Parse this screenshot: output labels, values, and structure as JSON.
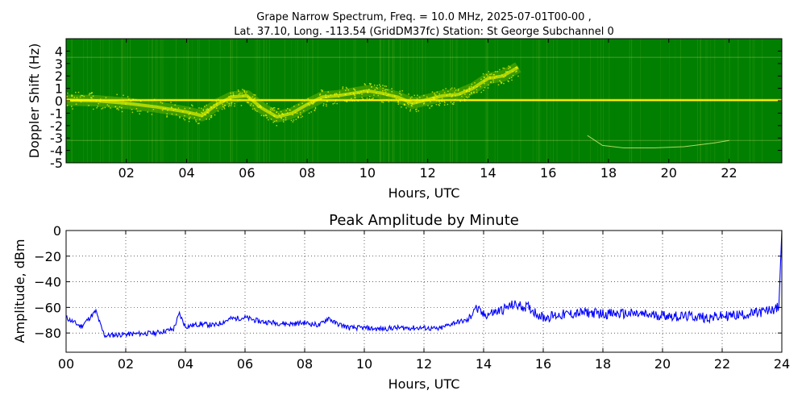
{
  "header": {
    "title_line1": "Grape Narrow Spectrum, Freq. = 10.0 MHz, 2025-07-01T00-00 ,",
    "title_line2": "Lat.  37.10, Long. -113.54 (GridDM37fc) Station: St George Subchannel 0"
  },
  "chart_data": [
    {
      "type": "heatmap",
      "title": "",
      "xlabel": "Hours, UTC",
      "ylabel": "Doppler Shift (Hz)",
      "xlim": [
        0,
        23.75
      ],
      "ylim": [
        -5,
        5
      ],
      "xticks": [
        "02",
        "04",
        "06",
        "08",
        "10",
        "12",
        "14",
        "16",
        "18",
        "20",
        "22"
      ],
      "xtick_values": [
        2,
        4,
        6,
        8,
        10,
        12,
        14,
        16,
        18,
        20,
        22
      ],
      "yticks": [
        "4",
        "3",
        "2",
        "1",
        "0",
        "-1",
        "-2",
        "-3",
        "-4",
        "-5"
      ],
      "ytick_values": [
        4,
        3,
        2,
        1,
        0,
        -1,
        -2,
        -3,
        -4,
        -5
      ],
      "background_color": "#007f00",
      "signal_color": "#ffff00",
      "carrier_hz": 0.05,
      "doppler_trace": {
        "hours": [
          0,
          1,
          2,
          3,
          4,
          4.5,
          5,
          5.5,
          6,
          6.5,
          7,
          7.5,
          8,
          8.5,
          9,
          9.5,
          10,
          10.5,
          11,
          11.5,
          12,
          12.5,
          13,
          13.5,
          14,
          14.5,
          15
        ],
        "hz": [
          0.05,
          0.0,
          -0.2,
          -0.5,
          -0.9,
          -1.2,
          -0.3,
          0.3,
          0.4,
          -0.6,
          -1.3,
          -1.0,
          -0.3,
          0.3,
          0.4,
          0.6,
          0.8,
          0.6,
          0.3,
          -0.2,
          0.1,
          0.4,
          0.5,
          1.0,
          1.8,
          2.0,
          2.7
        ]
      },
      "late_trace": {
        "hours": [
          17.3,
          17.8,
          18.5,
          19.5,
          20.5,
          21.5,
          22.0
        ],
        "hz": [
          -2.8,
          -3.6,
          -3.8,
          -3.8,
          -3.7,
          -3.4,
          -3.2
        ]
      },
      "grid": false,
      "legend": "none"
    },
    {
      "type": "line",
      "title": "Peak Amplitude by Minute",
      "xlabel": "Hours, UTC",
      "ylabel": "Amplitude, dBm",
      "xlim": [
        0,
        24
      ],
      "ylim": [
        -95,
        0
      ],
      "xticks": [
        "00",
        "02",
        "04",
        "06",
        "08",
        "10",
        "12",
        "14",
        "16",
        "18",
        "20",
        "22",
        "24"
      ],
      "xtick_values": [
        0,
        2,
        4,
        6,
        8,
        10,
        12,
        14,
        16,
        18,
        20,
        22,
        24
      ],
      "yticks": [
        "0",
        "−20",
        "−40",
        "−60",
        "−80"
      ],
      "ytick_values": [
        0,
        -20,
        -40,
        -60,
        -80
      ],
      "series": [
        {
          "color": "#0000ff",
          "x": [
            0,
            0.5,
            1,
            1.2,
            1.3,
            2,
            3,
            3.6,
            3.8,
            4,
            4.5,
            5,
            5.5,
            6,
            6.5,
            7,
            7.5,
            8,
            8.5,
            8.8,
            9,
            9.5,
            10,
            10.5,
            11,
            11.5,
            12,
            12.5,
            13,
            13.5,
            13.7,
            14,
            14.5,
            15,
            15.5,
            16,
            16.5,
            17,
            17.5,
            18,
            18.5,
            19,
            19.5,
            20,
            20.5,
            21,
            21.5,
            22,
            22.5,
            23,
            23.5,
            23.9,
            24
          ],
          "y": [
            -68,
            -75,
            -63,
            -77,
            -82,
            -81,
            -80,
            -77,
            -65,
            -75,
            -73,
            -74,
            -69,
            -68,
            -71,
            -72,
            -73,
            -72,
            -74,
            -68,
            -72,
            -76,
            -76,
            -77,
            -76,
            -76,
            -76,
            -77,
            -72,
            -70,
            -60,
            -66,
            -63,
            -58,
            -60,
            -68,
            -66,
            -65,
            -64,
            -65,
            -65,
            -65,
            -66,
            -66,
            -67,
            -67,
            -68,
            -67,
            -66,
            -65,
            -63,
            -60,
            0
          ]
        }
      ],
      "grid": true,
      "legend": "none"
    }
  ]
}
